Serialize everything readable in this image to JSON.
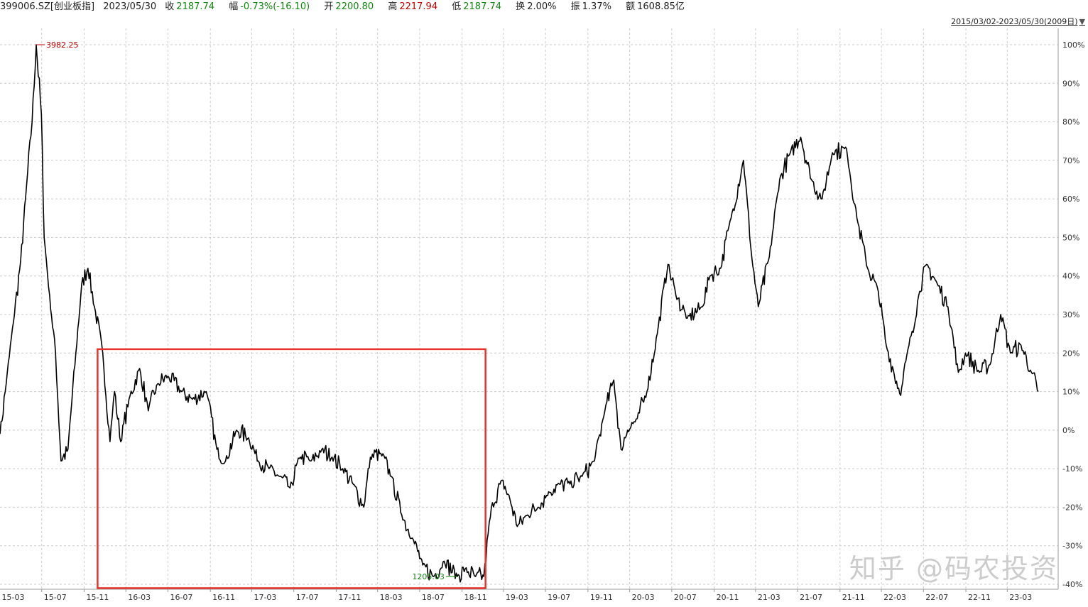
{
  "header": {
    "code": "399006.SZ[创业板指]",
    "date": "2023/05/30",
    "close_label": "收",
    "close": "2187.74",
    "change_label": "幅",
    "change": "-0.73%(-16.10)",
    "open_label": "开",
    "open": "2200.80",
    "high_label": "高",
    "high": "2217.94",
    "low_label": "低",
    "low": "2187.74",
    "turnover_label": "换",
    "turnover": "2.00%",
    "amplitude_label": "振",
    "amplitude": "1.37%",
    "amount_label": "额",
    "amount": "1608.85亿"
  },
  "range_label": "2015/03/02-2023/05/30(2009日)",
  "watermark": "知乎 @码农投资",
  "colors": {
    "line": "#000000",
    "box": "#e8322d",
    "high": "#c00000",
    "low": "#118811",
    "grid": "#cccccc"
  },
  "chart_data": {
    "type": "line",
    "x_ticks": [
      "15-03",
      "15-07",
      "15-11",
      "16-03",
      "16-07",
      "16-11",
      "17-03",
      "17-07",
      "17-11",
      "18-03",
      "18-07",
      "18-11",
      "19-03",
      "19-07",
      "19-11",
      "20-03",
      "20-07",
      "20-11",
      "21-03",
      "21-07",
      "21-11",
      "22-03",
      "22-07",
      "22-11",
      "23-03"
    ],
    "y_ticks": [
      100,
      90,
      80,
      70,
      60,
      50,
      40,
      30,
      20,
      10,
      0,
      -10,
      -20,
      -30,
      -40
    ],
    "y_tick_labels": [
      "100%",
      "90%",
      "80%",
      "70%",
      "60%",
      "50%",
      "40%",
      "30%",
      "20%",
      "10%",
      "0%",
      "-10%",
      "-20%",
      "-30%",
      "-40%"
    ],
    "ylim": [
      -40,
      100
    ],
    "series": [
      {
        "x": [
          "2015-03-02",
          "2015-03-20",
          "2015-04-10",
          "2015-05-01",
          "2015-05-15",
          "2015-06-03",
          "2015-06-15",
          "2015-06-30",
          "2015-07-08",
          "2015-07-24",
          "2015-08-10",
          "2015-08-26",
          "2015-09-15",
          "2015-10-08",
          "2015-10-25",
          "2015-11-12",
          "2015-12-01",
          "2015-12-25",
          "2016-01-15",
          "2016-01-28",
          "2016-02-15",
          "2016-03-10",
          "2016-04-10",
          "2016-05-05",
          "2016-06-01",
          "2016-07-01",
          "2016-08-10",
          "2016-09-10",
          "2016-10-20",
          "2016-11-20",
          "2016-12-15",
          "2017-01-16",
          "2017-02-20",
          "2017-03-20",
          "2017-04-20",
          "2017-05-20",
          "2017-06-20",
          "2017-07-20",
          "2017-08-20",
          "2017-09-20",
          "2017-10-20",
          "2017-11-20",
          "2017-12-20",
          "2018-01-20",
          "2018-02-08",
          "2018-03-10",
          "2018-04-10",
          "2018-05-10",
          "2018-06-10",
          "2018-07-10",
          "2018-08-10",
          "2018-09-10",
          "2018-10-18",
          "2018-11-10",
          "2018-12-10",
          "2019-01-03",
          "2019-01-25",
          "2019-02-25",
          "2019-03-20",
          "2019-04-10",
          "2019-05-10",
          "2019-06-10",
          "2019-07-10",
          "2019-08-10",
          "2019-09-10",
          "2019-10-15",
          "2019-11-20",
          "2019-12-20",
          "2020-01-15",
          "2020-02-05",
          "2020-02-24",
          "2020-03-23",
          "2020-04-20",
          "2020-05-20",
          "2020-06-20",
          "2020-07-13",
          "2020-08-15",
          "2020-09-28",
          "2020-10-20",
          "2020-11-20",
          "2020-12-20",
          "2021-01-25",
          "2021-02-18",
          "2021-03-09",
          "2021-04-10",
          "2021-05-10",
          "2021-06-10",
          "2021-07-10",
          "2021-08-10",
          "2021-09-10",
          "2021-10-10",
          "2021-11-20",
          "2021-12-20",
          "2022-01-20",
          "2022-02-20",
          "2022-03-15",
          "2022-04-26",
          "2022-05-20",
          "2022-06-20",
          "2022-07-10",
          "2022-08-10",
          "2022-09-10",
          "2022-10-10",
          "2022-10-31",
          "2022-12-10",
          "2023-01-10",
          "2023-02-10",
          "2023-03-10",
          "2023-04-10",
          "2023-05-10",
          "2023-05-30"
        ],
        "y": [
          -1,
          12,
          28,
          44,
          60,
          80,
          100,
          82,
          50,
          35,
          20,
          -8,
          -5,
          20,
          38,
          42,
          32,
          20,
          -3,
          10,
          -3,
          8,
          16,
          5,
          12,
          14,
          10,
          8,
          10,
          -5,
          -8,
          0,
          -2,
          -8,
          -10,
          -12,
          -15,
          -7,
          -8,
          -5,
          -7,
          -10,
          -14,
          -20,
          -7,
          -6,
          -12,
          -22,
          -28,
          -35,
          -38,
          -34,
          -38,
          -36,
          -38,
          -38,
          -20,
          -13,
          -18,
          -25,
          -22,
          -20,
          -16,
          -14,
          -14,
          -12,
          -8,
          5,
          13,
          -5,
          0,
          3,
          10,
          25,
          43,
          35,
          29,
          32,
          40,
          42,
          55,
          70,
          45,
          32,
          45,
          65,
          72,
          76,
          65,
          60,
          72,
          73,
          55,
          42,
          36,
          22,
          9,
          22,
          36,
          43,
          38,
          32,
          15,
          20,
          15,
          17,
          30,
          20,
          22,
          15,
          10
        ],
        "xlim": [
          "2015-03-02",
          "2023-05-30"
        ]
      }
    ],
    "annotations": {
      "high_label": "3982.25",
      "low_label": "1205.03",
      "box_x": [
        "2015-12-10",
        "2019-01-08"
      ],
      "box_y": [
        -41,
        21
      ]
    }
  }
}
